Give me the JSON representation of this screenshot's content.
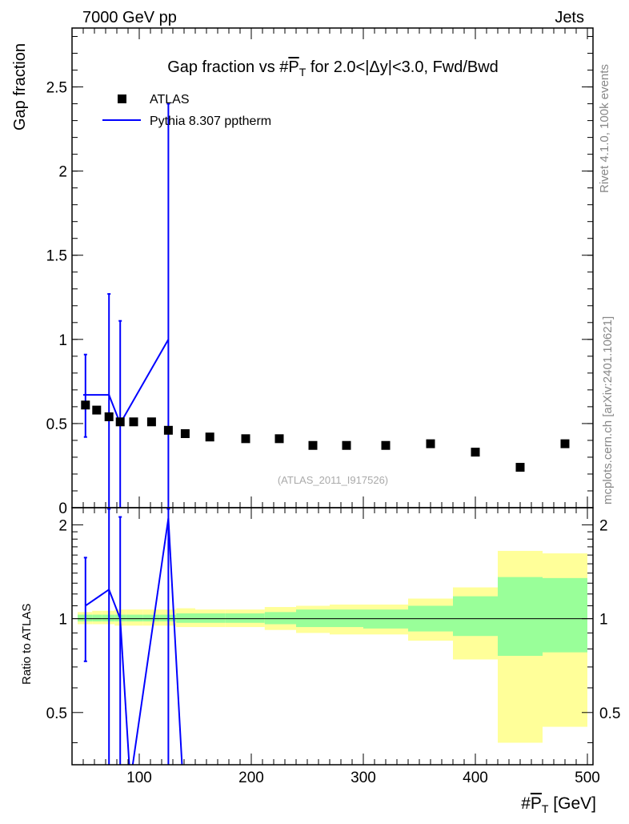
{
  "header": {
    "left": "7000 GeV pp",
    "right": "Jets"
  },
  "side_labels": {
    "rivet": "Rivet 4.1.0,  100k events",
    "mcplots": "mcplots.cern.ch [arXiv:2401.10621]"
  },
  "chart_data": [
    {
      "type": "scatter",
      "panel": "main",
      "title": "Gap fraction vs #P_T for 2.0<|Δy|<3.0, Fwd/Bwd",
      "title_parts": {
        "prefix": "Gap fraction vs #",
        "p": "P",
        "sub": "T",
        "suffix": " for 2.0<|Δy|<3.0, Fwd/Bwd"
      },
      "ylabel": "Gap fraction",
      "xlim": [
        40,
        505
      ],
      "ylim": [
        0,
        2.85
      ],
      "yticks": [
        {
          "v": 0,
          "label": "0"
        },
        {
          "v": 0.5,
          "label": "0.5"
        },
        {
          "v": 1,
          "label": "1"
        },
        {
          "v": 1.5,
          "label": "1.5"
        },
        {
          "v": 2,
          "label": "2"
        },
        {
          "v": 2.5,
          "label": "2.5"
        }
      ],
      "watermark": "(ATLAS_2011_I917526)",
      "legend": [
        {
          "name": "ATLAS",
          "marker": "square",
          "color": "#000000"
        },
        {
          "name": "Pythia 8.307 pptherm",
          "marker": "line",
          "color": "#0000ff"
        }
      ],
      "series": [
        {
          "name": "ATLAS",
          "x": [
            52,
            62,
            73,
            83,
            95,
            111,
            126,
            141,
            163,
            195,
            225,
            255,
            285,
            320,
            360,
            400,
            440,
            480
          ],
          "y": [
            0.61,
            0.58,
            0.54,
            0.51,
            0.51,
            0.51,
            0.46,
            0.44,
            0.42,
            0.41,
            0.41,
            0.37,
            0.37,
            0.37,
            0.38,
            0.33,
            0.24,
            0.38
          ]
        },
        {
          "name": "Pythia 8.307 pptherm",
          "x": [
            52,
            73,
            83,
            126
          ],
          "y": [
            0.67,
            0.67,
            0.5,
            1.0
          ],
          "step_edges": [
            [
              50,
              73
            ],
            [
              73,
              73
            ],
            [
              83,
              83
            ],
            [
              126,
              126
            ]
          ],
          "err_low": [
            0.42,
            -0.1,
            -0.1,
            -0.1
          ],
          "err_high": [
            0.91,
            1.27,
            1.11,
            2.4
          ]
        }
      ]
    },
    {
      "type": "line",
      "panel": "ratio",
      "ylabel": "Ratio to ATLAS",
      "xlabel": "#P_T [GeV]",
      "xlabel_parts": {
        "prefix": "#",
        "p": "P",
        "sub": "T",
        "suffix": " [GeV]"
      },
      "xlim": [
        40,
        505
      ],
      "ylim": [
        0.34,
        2.27
      ],
      "xticks": [
        {
          "v": 100,
          "label": "100"
        },
        {
          "v": 200,
          "label": "200"
        },
        {
          "v": 300,
          "label": "300"
        },
        {
          "v": 400,
          "label": "400"
        },
        {
          "v": 500,
          "label": "500"
        }
      ],
      "yticks": [
        {
          "v": 0.5,
          "label": "0.5"
        },
        {
          "v": 1,
          "label": "1"
        },
        {
          "v": 2,
          "label": "2"
        }
      ],
      "bands": {
        "edges": [
          45,
          58,
          67,
          78,
          88,
          103,
          118,
          133,
          150,
          177,
          212,
          240,
          270,
          300,
          340,
          380,
          420,
          460,
          500
        ],
        "yellow_low": [
          0.96,
          0.96,
          0.96,
          0.95,
          0.95,
          0.95,
          0.95,
          0.94,
          0.94,
          0.94,
          0.92,
          0.9,
          0.89,
          0.89,
          0.85,
          0.74,
          0.4,
          0.45
        ],
        "yellow_high": [
          1.05,
          1.06,
          1.06,
          1.07,
          1.07,
          1.07,
          1.07,
          1.08,
          1.07,
          1.07,
          1.09,
          1.1,
          1.11,
          1.11,
          1.16,
          1.26,
          1.65,
          1.62
        ],
        "green_low": [
          0.98,
          0.98,
          0.98,
          0.98,
          0.98,
          0.98,
          0.98,
          0.97,
          0.97,
          0.97,
          0.96,
          0.94,
          0.94,
          0.93,
          0.91,
          0.88,
          0.76,
          0.78
        ],
        "green_high": [
          1.03,
          1.03,
          1.03,
          1.03,
          1.03,
          1.03,
          1.03,
          1.04,
          1.04,
          1.04,
          1.05,
          1.07,
          1.07,
          1.07,
          1.1,
          1.18,
          1.36,
          1.35
        ]
      },
      "series": [
        {
          "name": "Pythia 8.307 pptherm",
          "line_x": [
            52,
            73,
            83,
            92,
            126,
            139
          ],
          "line_y": [
            1.1,
            1.24,
            1.0,
            0.3,
            2.1,
            0.3
          ],
          "err_x": [
            52,
            73,
            83,
            126
          ],
          "err_low": [
            0.73,
            0.3,
            0.3,
            0.3
          ],
          "err_high": [
            1.57,
            2.25,
            2.12,
            2.25
          ]
        }
      ]
    }
  ]
}
